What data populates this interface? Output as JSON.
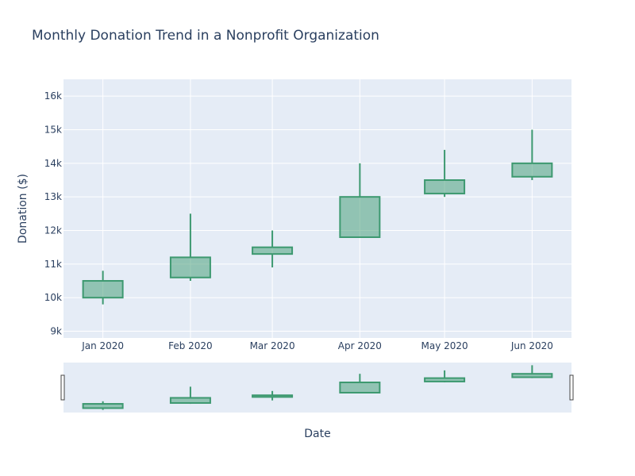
{
  "chart_data": {
    "type": "candlestick",
    "title": "Monthly Donation Trend in a Nonprofit Organization",
    "xlabel": "Date",
    "ylabel": "Donation ($)",
    "x": [
      "Jan 2020",
      "Feb 2020",
      "Mar 2020",
      "Apr 2020",
      "May 2020",
      "Jun 2020"
    ],
    "x_dates": [
      "2020-01-01",
      "2020-02-01",
      "2020-03-01",
      "2020-04-01",
      "2020-05-01",
      "2020-06-01"
    ],
    "open": [
      10000,
      10600,
      11300,
      11800,
      13100,
      13600
    ],
    "high": [
      10800,
      12500,
      12000,
      14000,
      14400,
      15000
    ],
    "low": [
      9800,
      10500,
      10900,
      11800,
      13000,
      13500
    ],
    "close": [
      10500,
      11200,
      11500,
      13000,
      13500,
      14000
    ],
    "ylim": [
      8800,
      16500
    ],
    "yticks": [
      9000,
      10000,
      11000,
      12000,
      13000,
      14000,
      15000,
      16000
    ],
    "ytick_labels": [
      "9k",
      "10k",
      "11k",
      "12k",
      "13k",
      "14k",
      "15k",
      "16k"
    ],
    "grid": true,
    "rangeslider": true,
    "colors": {
      "increasing_line": "#3d9970",
      "increasing_fill": "rgba(61,153,112,0.5)",
      "plot_bg": "#e5ecf6",
      "grid": "#ffffff",
      "text": "#2a3f5f"
    }
  }
}
